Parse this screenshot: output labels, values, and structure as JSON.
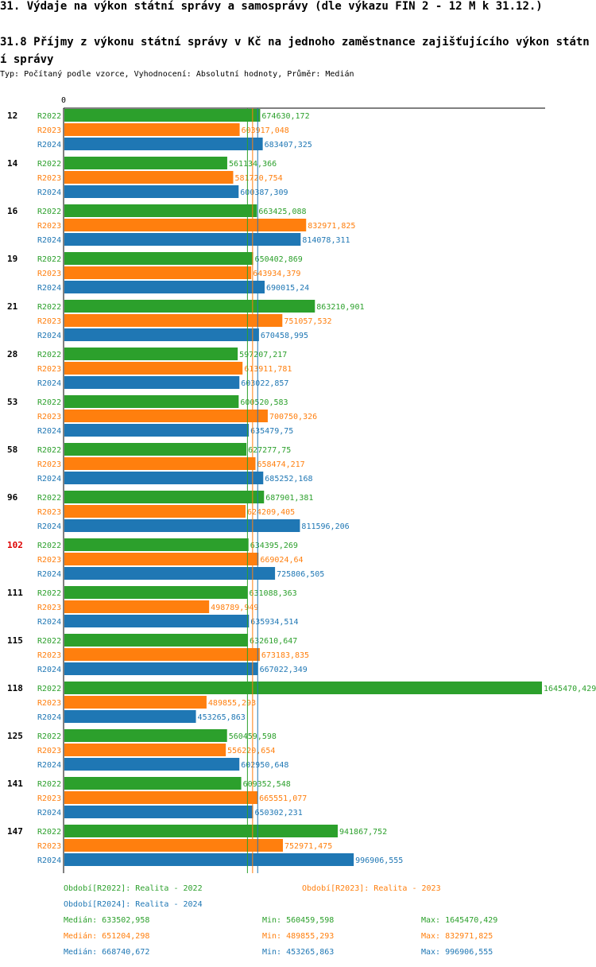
{
  "header": {
    "title": "31. Výdaje na výkon státní správy a samosprávy (dle výkazu FIN 2 - 12 M k 31.12.)",
    "subtitle": "31.8 Příjmy z výkonu státní správy v Kč na jednoho zaměstnance zajišťujícího výkon státní správy",
    "meta": "Typ: Počítaný podle vzorce, Vyhodnocení: Absolutní hodnoty, Průměr: Medián"
  },
  "colors": {
    "R2022": "#2ca02c",
    "R2023": "#ff7f0e",
    "R2024": "#1f77b4",
    "highlight": "#dd0000",
    "axis": "#000000"
  },
  "chart_data": {
    "type": "bar",
    "orientation": "horizontal",
    "axis_zero_label": "0",
    "series_names": [
      "R2022",
      "R2023",
      "R2024"
    ],
    "highlight_category": "102",
    "categories": [
      {
        "name": "12",
        "values": [
          674630.172,
          603917.048,
          683407.325
        ],
        "labels": [
          "674630,172",
          "603917,048",
          "683407,325"
        ]
      },
      {
        "name": "14",
        "values": [
          561134.366,
          581720.754,
          600387.309
        ],
        "labels": [
          "561134,366",
          "581720,754",
          "600387,309"
        ]
      },
      {
        "name": "16",
        "values": [
          663425.088,
          832971.825,
          814078.311
        ],
        "labels": [
          "663425,088",
          "832971,825",
          "814078,311"
        ]
      },
      {
        "name": "19",
        "values": [
          650402.869,
          643934.379,
          690015.24
        ],
        "labels": [
          "650402,869",
          "643934,379",
          "690015,24"
        ]
      },
      {
        "name": "21",
        "values": [
          863210.901,
          751057.532,
          670458.995
        ],
        "labels": [
          "863210,901",
          "751057,532",
          "670458,995"
        ]
      },
      {
        "name": "28",
        "values": [
          597207.217,
          613911.781,
          603022.857
        ],
        "labels": [
          "597207,217",
          "613911,781",
          "603022,857"
        ]
      },
      {
        "name": "53",
        "values": [
          600520.583,
          700750.326,
          635479.75
        ],
        "labels": [
          "600520,583",
          "700750,326",
          "635479,75"
        ]
      },
      {
        "name": "58",
        "values": [
          627277.75,
          658474.217,
          685252.168
        ],
        "labels": [
          "627277,75",
          "658474,217",
          "685252,168"
        ]
      },
      {
        "name": "96",
        "values": [
          687901.381,
          624209.405,
          811596.206
        ],
        "labels": [
          "687901,381",
          "624209,405",
          "811596,206"
        ]
      },
      {
        "name": "102",
        "values": [
          634395.269,
          669024.64,
          725806.505
        ],
        "labels": [
          "634395,269",
          "669024,64",
          "725806,505"
        ]
      },
      {
        "name": "111",
        "values": [
          631088.363,
          498789.949,
          635934.514
        ],
        "labels": [
          "631088,363",
          "498789,949",
          "635934,514"
        ]
      },
      {
        "name": "115",
        "values": [
          632610.647,
          673183.835,
          667022.349
        ],
        "labels": [
          "632610,647",
          "673183,835",
          "667022,349"
        ]
      },
      {
        "name": "118",
        "values": [
          1645470.429,
          489855.293,
          453265.863
        ],
        "labels": [
          "1645470,429",
          "489855,293",
          "453265,863"
        ]
      },
      {
        "name": "125",
        "values": [
          560459.598,
          556220.654,
          602950.648
        ],
        "labels": [
          "560459,598",
          "556220,654",
          "602950,648"
        ]
      },
      {
        "name": "141",
        "values": [
          609352.548,
          665551.077,
          650302.231
        ],
        "labels": [
          "609352,548",
          "665551,077",
          "650302,231"
        ]
      },
      {
        "name": "147",
        "values": [
          941867.752,
          752971.475,
          996906.555
        ],
        "labels": [
          "941867,752",
          "752971,475",
          "996906,555"
        ]
      }
    ],
    "xlim": [
      0,
      1645470.429
    ],
    "medians": [
      633502.958,
      651204.298,
      668740.672
    ]
  },
  "legend": {
    "periods": [
      {
        "text": "Období[R2022]: Realita - 2022",
        "color": "#2ca02c"
      },
      {
        "text": "Období[R2023]: Realita - 2023",
        "color": "#ff7f0e"
      },
      {
        "text": "Období[R2024]: Realita - 2024",
        "color": "#1f77b4"
      }
    ],
    "stats": [
      {
        "median": "Medián: 633502,958",
        "min": "Min: 560459,598",
        "max": "Max: 1645470,429",
        "color": "#2ca02c"
      },
      {
        "median": "Medián: 651204,298",
        "min": "Min: 489855,293",
        "max": "Max: 832971,825",
        "color": "#ff7f0e"
      },
      {
        "median": "Medián: 668740,672",
        "min": "Min: 453265,863",
        "max": "Max: 996906,555",
        "color": "#1f77b4"
      }
    ]
  }
}
